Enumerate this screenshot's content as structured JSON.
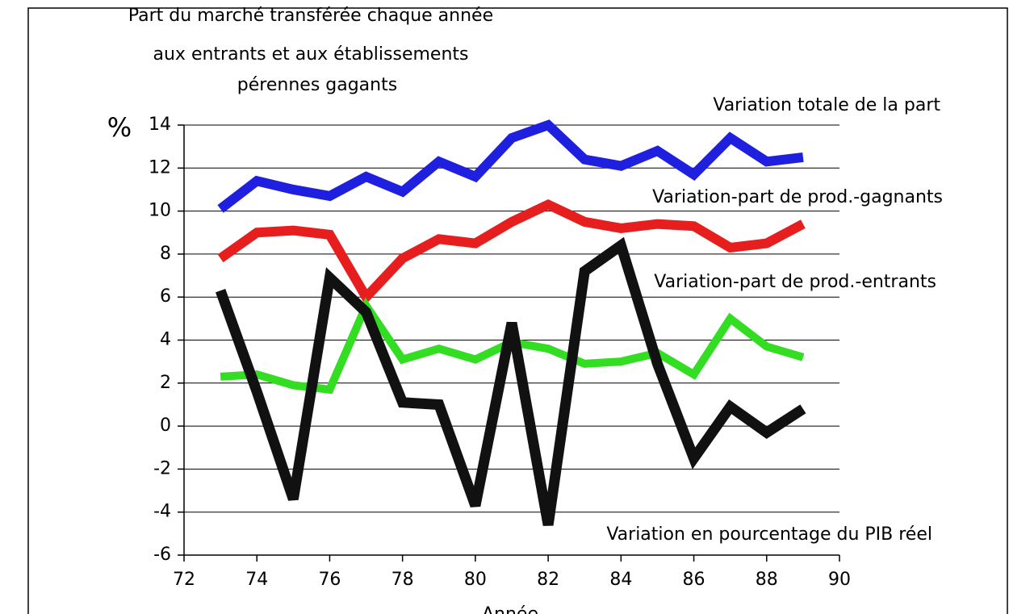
{
  "chart_data": {
    "type": "line",
    "title": [
      "Part du marché transférée chaque année",
      "aux entrants et aux établissements",
      "pérennes gagants"
    ],
    "x_label": "Année",
    "y_label": "%",
    "x": [
      73,
      74,
      75,
      76,
      77,
      78,
      79,
      80,
      81,
      82,
      83,
      84,
      85,
      86,
      87,
      88,
      89
    ],
    "series": [
      {
        "name": "Variation totale de la part",
        "color": "#1f1fe0",
        "values": [
          10.1,
          11.4,
          11.0,
          10.7,
          11.6,
          10.9,
          12.3,
          11.6,
          13.4,
          14.0,
          12.4,
          12.1,
          12.8,
          11.7,
          13.4,
          12.3,
          12.5
        ]
      },
      {
        "name": "Variation-part de prod.-gagnants",
        "color": "#e61e1e",
        "values": [
          7.8,
          9.0,
          9.1,
          8.9,
          6.0,
          7.8,
          8.7,
          8.5,
          9.5,
          10.3,
          9.5,
          9.2,
          9.4,
          9.3,
          8.3,
          8.5,
          9.4
        ]
      },
      {
        "name": "Variation-part de prod.-entrants",
        "color": "#33dd22",
        "values": [
          2.3,
          2.4,
          1.9,
          1.7,
          5.6,
          3.1,
          3.6,
          3.1,
          3.9,
          3.6,
          2.9,
          3.0,
          3.4,
          2.4,
          5.0,
          3.7,
          3.2
        ]
      },
      {
        "name": "Variation en pourcentage du PIB réel",
        "color": "#111111",
        "values": [
          6.3,
          1.6,
          -3.4,
          6.9,
          5.3,
          1.1,
          1.0,
          -3.7,
          4.8,
          -4.6,
          7.2,
          8.4,
          2.9,
          -1.5,
          0.9,
          -0.3,
          0.8
        ]
      }
    ],
    "xlim": [
      72,
      90
    ],
    "xticks": [
      72,
      74,
      76,
      78,
      80,
      82,
      84,
      86,
      88,
      90
    ],
    "ylim": [
      -6,
      14
    ],
    "yticks": [
      -6,
      -4,
      -2,
      0,
      2,
      4,
      6,
      8,
      10,
      12,
      14
    ],
    "grid": true
  }
}
